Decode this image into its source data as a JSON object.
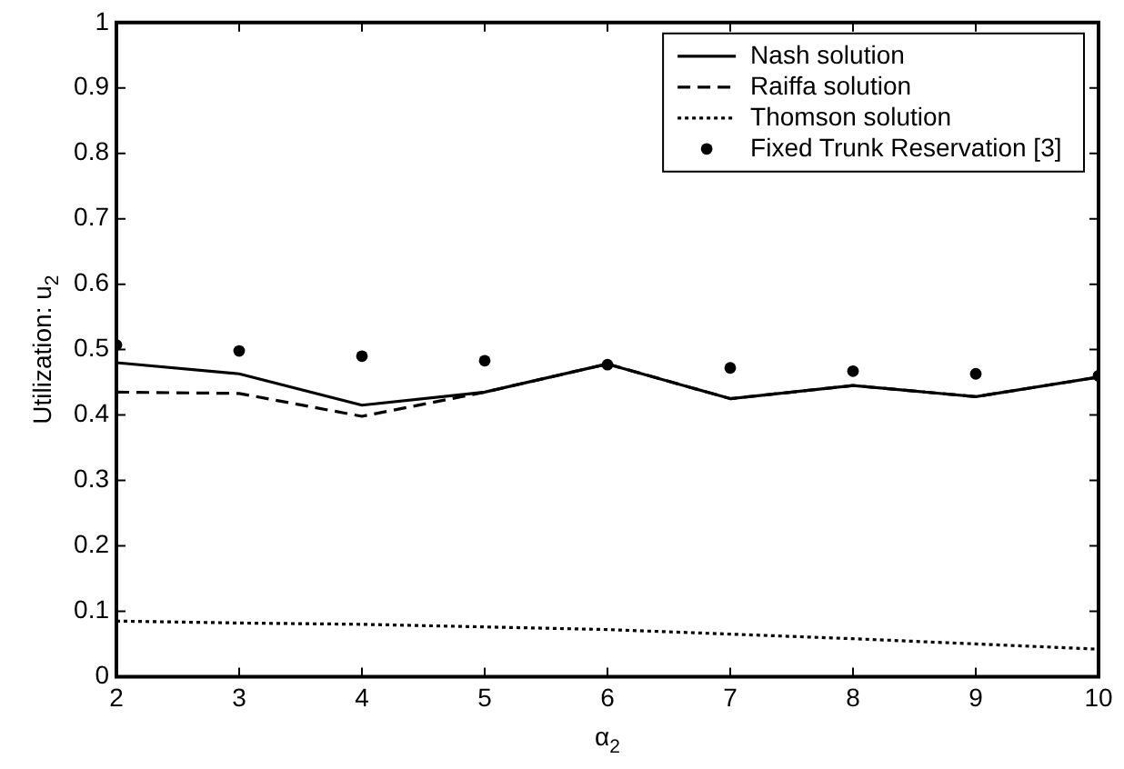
{
  "chart_data": {
    "type": "line",
    "xlabel": "α$_{2}$",
    "ylabel": "Utilization: u$_{2}$",
    "x": [
      2,
      3,
      4,
      5,
      6,
      7,
      8,
      9,
      10
    ],
    "series": [
      {
        "name": "Nash solution",
        "color": "#000000",
        "line_style": "solid",
        "marker": "none",
        "values": [
          0.48,
          0.463,
          0.415,
          0.435,
          0.478,
          0.425,
          0.445,
          0.428,
          0.458
        ]
      },
      {
        "name": "Raiffa solution",
        "color": "#000000",
        "line_style": "dashed",
        "marker": "none",
        "values": [
          0.435,
          0.433,
          0.398,
          0.435,
          0.478,
          0.425,
          0.445,
          0.428,
          0.458
        ]
      },
      {
        "name": "Thomson solution",
        "color": "#000000",
        "line_style": "dotted",
        "marker": "none",
        "values": [
          0.085,
          0.082,
          0.08,
          0.076,
          0.072,
          0.065,
          0.058,
          0.05,
          0.042
        ]
      },
      {
        "name": "Fixed Trunk Reservation [3]",
        "type": "scatter",
        "color": "#000000",
        "marker": "circle",
        "values": [
          0.507,
          0.498,
          0.49,
          0.483,
          0.477,
          0.472,
          0.467,
          0.463,
          0.46
        ]
      }
    ],
    "xlim": [
      2,
      10
    ],
    "xticks": [
      2,
      3,
      4,
      5,
      6,
      7,
      8,
      9,
      10
    ],
    "ylim": [
      0,
      1
    ],
    "yticks": [
      0,
      0.1,
      0.2,
      0.3,
      0.4,
      0.5,
      0.6,
      0.7,
      0.8,
      0.9,
      1
    ],
    "grid": false,
    "legend": "top right"
  }
}
